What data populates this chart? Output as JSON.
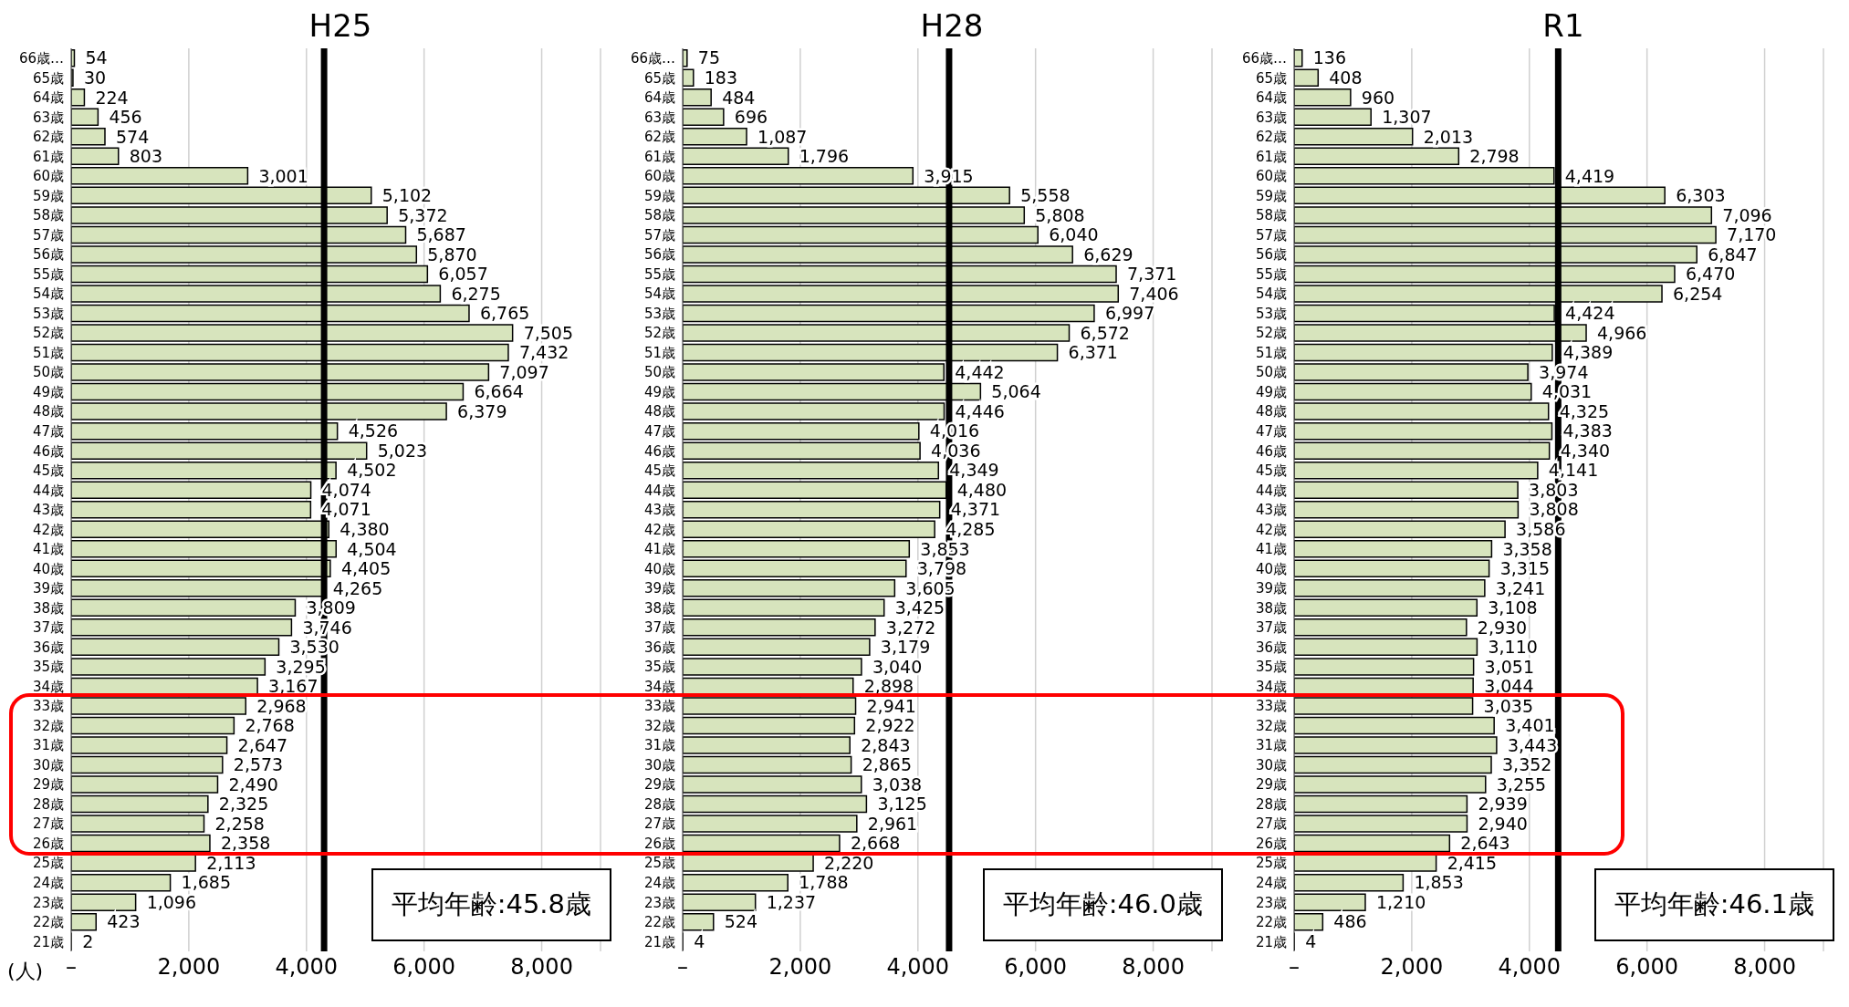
{
  "chart_data": [
    {
      "type": "bar",
      "orientation": "horizontal",
      "title": "H25",
      "xlabel": "(人)",
      "categories": [
        "66歳…",
        "65歳",
        "64歳",
        "63歳",
        "62歳",
        "61歳",
        "60歳",
        "59歳",
        "58歳",
        "57歳",
        "56歳",
        "55歳",
        "54歳",
        "53歳",
        "52歳",
        "51歳",
        "50歳",
        "49歳",
        "48歳",
        "47歳",
        "46歳",
        "45歳",
        "44歳",
        "43歳",
        "42歳",
        "41歳",
        "40歳",
        "39歳",
        "38歳",
        "37歳",
        "36歳",
        "35歳",
        "34歳",
        "33歳",
        "32歳",
        "31歳",
        "30歳",
        "29歳",
        "28歳",
        "27歳",
        "26歳",
        "25歳",
        "24歳",
        "23歳",
        "22歳",
        "21歳"
      ],
      "values": [
        54,
        30,
        224,
        456,
        574,
        803,
        3001,
        5102,
        5372,
        5687,
        5870,
        6057,
        6275,
        6765,
        7505,
        7432,
        7097,
        6664,
        6379,
        4526,
        5023,
        4502,
        4074,
        4071,
        4380,
        4504,
        4405,
        4265,
        3809,
        3746,
        3530,
        3295,
        3167,
        2968,
        2768,
        2647,
        2573,
        2490,
        2325,
        2258,
        2358,
        2113,
        1685,
        1096,
        423,
        2
      ],
      "value_labels": [
        "54",
        "30",
        "224",
        "456",
        "574",
        "803",
        "3,001",
        "5,102",
        "5,372",
        "5,687",
        "5,870",
        "6,057",
        "6,275",
        "6,765",
        "7,505",
        "7,432",
        "7,097",
        "6,664",
        "6,379",
        "4,526",
        "5,023",
        "4,502",
        "4,074",
        "4,071",
        "4,380",
        "4,504",
        "4,405",
        "4,265",
        "3,809",
        "3,746",
        "3,530",
        "3,295",
        "3,167",
        "2,968",
        "2,768",
        "2,647",
        "2,573",
        "2,490",
        "2,325",
        "2,258",
        "2,358",
        "2,113",
        "1,685",
        "1,096",
        "423",
        "2"
      ],
      "color": "#d7e4bd",
      "xlim": [
        0,
        9000
      ],
      "xticks": [
        {
          "value": 0,
          "label": "–"
        },
        {
          "value": 2000,
          "label": "2,000"
        },
        {
          "value": 4000,
          "label": "4,000"
        },
        {
          "value": 6000,
          "label": "6,000"
        },
        {
          "value": 8000,
          "label": "8,000"
        }
      ],
      "grid": "x",
      "ref_lines": [
        {
          "axis": "x",
          "value": 4300,
          "color": "#000000"
        }
      ],
      "annotations": [
        "平均年齢:45.8歳"
      ]
    },
    {
      "type": "bar",
      "orientation": "horizontal",
      "title": "H28",
      "categories": [
        "66歳…",
        "65歳",
        "64歳",
        "63歳",
        "62歳",
        "61歳",
        "60歳",
        "59歳",
        "58歳",
        "57歳",
        "56歳",
        "55歳",
        "54歳",
        "53歳",
        "52歳",
        "51歳",
        "50歳",
        "49歳",
        "48歳",
        "47歳",
        "46歳",
        "45歳",
        "44歳",
        "43歳",
        "42歳",
        "41歳",
        "40歳",
        "39歳",
        "38歳",
        "37歳",
        "36歳",
        "35歳",
        "34歳",
        "33歳",
        "32歳",
        "31歳",
        "30歳",
        "29歳",
        "28歳",
        "27歳",
        "26歳",
        "25歳",
        "24歳",
        "23歳",
        "22歳",
        "21歳"
      ],
      "values": [
        75,
        183,
        484,
        696,
        1087,
        1796,
        3915,
        5558,
        5808,
        6040,
        6629,
        7371,
        7406,
        6997,
        6572,
        6371,
        4442,
        5064,
        4446,
        4016,
        4036,
        4349,
        4480,
        4371,
        4285,
        3853,
        3798,
        3605,
        3425,
        3272,
        3179,
        3040,
        2898,
        2941,
        2922,
        2843,
        2865,
        3038,
        3125,
        2961,
        2668,
        2220,
        1788,
        1237,
        524,
        4
      ],
      "value_labels": [
        "75",
        "183",
        "484",
        "696",
        "1,087",
        "1,796",
        "3,915",
        "5,558",
        "5,808",
        "6,040",
        "6,629",
        "7,371",
        "7,406",
        "6,997",
        "6,572",
        "6,371",
        "4,442",
        "5,064",
        "4,446",
        "4,016",
        "4,036",
        "4,349",
        "4,480",
        "4,371",
        "4,285",
        "3,853",
        "3,798",
        "3,605",
        "3,425",
        "3,272",
        "3,179",
        "3,040",
        "2,898",
        "2,941",
        "2,922",
        "2,843",
        "2,865",
        "3,038",
        "3,125",
        "2,961",
        "2,668",
        "2,220",
        "1,788",
        "1,237",
        "524",
        "4"
      ],
      "color": "#d7e4bd",
      "xlim": [
        0,
        9000
      ],
      "xticks": [
        {
          "value": 0,
          "label": "–"
        },
        {
          "value": 2000,
          "label": "2,000"
        },
        {
          "value": 4000,
          "label": "4,000"
        },
        {
          "value": 6000,
          "label": "6,000"
        },
        {
          "value": 8000,
          "label": "8,000"
        }
      ],
      "grid": "x",
      "ref_lines": [
        {
          "axis": "x",
          "value": 4530,
          "color": "#000000"
        }
      ],
      "annotations": [
        "平均年齢:46.0歳"
      ]
    },
    {
      "type": "bar",
      "orientation": "horizontal",
      "title": "R1",
      "categories": [
        "66歳…",
        "65歳",
        "64歳",
        "63歳",
        "62歳",
        "61歳",
        "60歳",
        "59歳",
        "58歳",
        "57歳",
        "56歳",
        "55歳",
        "54歳",
        "53歳",
        "52歳",
        "51歳",
        "50歳",
        "49歳",
        "48歳",
        "47歳",
        "46歳",
        "45歳",
        "44歳",
        "43歳",
        "42歳",
        "41歳",
        "40歳",
        "39歳",
        "38歳",
        "37歳",
        "36歳",
        "35歳",
        "34歳",
        "33歳",
        "32歳",
        "31歳",
        "30歳",
        "29歳",
        "28歳",
        "27歳",
        "26歳",
        "25歳",
        "24歳",
        "23歳",
        "22歳",
        "21歳"
      ],
      "values": [
        136,
        408,
        960,
        1307,
        2013,
        2798,
        4419,
        6303,
        7096,
        7170,
        6847,
        6470,
        6254,
        4424,
        4966,
        4389,
        3974,
        4031,
        4325,
        4383,
        4340,
        4141,
        3803,
        3808,
        3586,
        3358,
        3315,
        3241,
        3108,
        2930,
        3110,
        3051,
        3044,
        3035,
        3401,
        3443,
        3352,
        3255,
        2939,
        2940,
        2643,
        2415,
        1853,
        1210,
        486,
        4
      ],
      "value_labels": [
        "136",
        "408",
        "960",
        "1,307",
        "2,013",
        "2,798",
        "4,419",
        "6,303",
        "7,096",
        "7,170",
        "6,847",
        "6,470",
        "6,254",
        "4,424",
        "4,966",
        "4,389",
        "3,974",
        "4,031",
        "4,325",
        "4,383",
        "4,340",
        "4,141",
        "3,803",
        "3,808",
        "3,586",
        "3,358",
        "3,315",
        "3,241",
        "3,108",
        "2,930",
        "3,110",
        "3,051",
        "3,044",
        "3,035",
        "3,401",
        "3,443",
        "3,352",
        "3,255",
        "2,939",
        "2,940",
        "2,643",
        "2,415",
        "1,853",
        "1,210",
        "486",
        "4"
      ],
      "color": "#d7e4bd",
      "xlim": [
        0,
        9000
      ],
      "xticks": [
        {
          "value": 0,
          "label": "–"
        },
        {
          "value": 2000,
          "label": "2,000"
        },
        {
          "value": 4000,
          "label": "4,000"
        },
        {
          "value": 6000,
          "label": "6,000"
        },
        {
          "value": 8000,
          "label": "8,000"
        }
      ],
      "grid": "x",
      "ref_lines": [
        {
          "axis": "x",
          "value": 4490,
          "color": "#000000"
        }
      ],
      "annotations": [
        "平均年齢:46.1歳"
      ]
    }
  ]
}
